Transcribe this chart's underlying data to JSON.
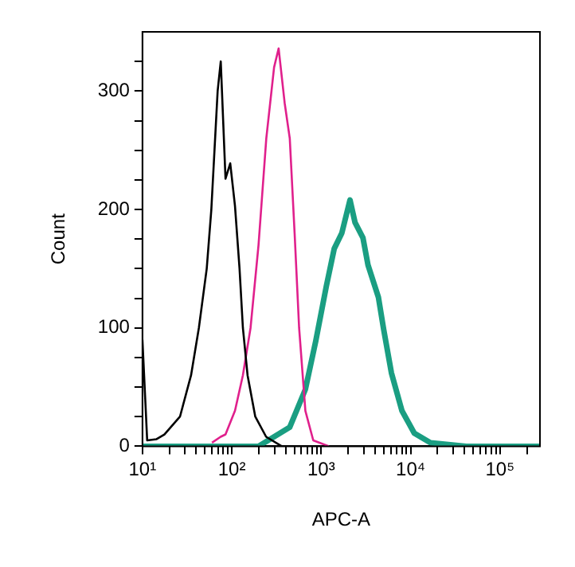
{
  "chart_data": {
    "type": "line",
    "xlabel": "APC-A",
    "ylabel": "Count",
    "log": "x",
    "grid": false,
    "legend": false,
    "marker": "none",
    "line_style": "solid",
    "xlim": [
      10,
      280000
    ],
    "xticks": [
      {
        "value": 10,
        "label": "10¹"
      },
      {
        "value": 20,
        "label": null
      },
      {
        "value": 30,
        "label": null
      },
      {
        "value": 40,
        "label": null
      },
      {
        "value": 50,
        "label": null
      },
      {
        "value": 60,
        "label": null
      },
      {
        "value": 70,
        "label": null
      },
      {
        "value": 80,
        "label": null
      },
      {
        "value": 90,
        "label": null
      },
      {
        "value": 100,
        "label": "10²"
      },
      {
        "value": 200,
        "label": null
      },
      {
        "value": 300,
        "label": null
      },
      {
        "value": 400,
        "label": null
      },
      {
        "value": 500,
        "label": null
      },
      {
        "value": 600,
        "label": null
      },
      {
        "value": 700,
        "label": null
      },
      {
        "value": 800,
        "label": null
      },
      {
        "value": 900,
        "label": null
      },
      {
        "value": 1000,
        "label": "10³"
      },
      {
        "value": 2000,
        "label": null
      },
      {
        "value": 3000,
        "label": null
      },
      {
        "value": 4000,
        "label": null
      },
      {
        "value": 5000,
        "label": null
      },
      {
        "value": 6000,
        "label": null
      },
      {
        "value": 7000,
        "label": null
      },
      {
        "value": 8000,
        "label": null
      },
      {
        "value": 9000,
        "label": null
      },
      {
        "value": 10000,
        "label": "10⁴"
      },
      {
        "value": 20000,
        "label": null
      },
      {
        "value": 30000,
        "label": null
      },
      {
        "value": 40000,
        "label": null
      },
      {
        "value": 50000,
        "label": null
      },
      {
        "value": 60000,
        "label": null
      },
      {
        "value": 70000,
        "label": null
      },
      {
        "value": 80000,
        "label": null
      },
      {
        "value": 90000,
        "label": null
      },
      {
        "value": 100000,
        "label": "10⁵"
      },
      {
        "value": 200000,
        "label": null
      }
    ],
    "ylim": [
      0,
      350
    ],
    "yticks": [
      0,
      {
        "value": 25,
        "label": null
      },
      {
        "value": 50,
        "label": null
      },
      {
        "value": 75,
        "label": null
      },
      100,
      {
        "value": 125,
        "label": null
      },
      {
        "value": 150,
        "label": null
      },
      {
        "value": 175,
        "label": null
      },
      200,
      {
        "value": 225,
        "label": null
      },
      {
        "value": 250,
        "label": null
      },
      {
        "value": 275,
        "label": null
      },
      300,
      {
        "value": 325,
        "label": null
      }
    ],
    "series": [
      {
        "color": "#000000",
        "x": [
          10,
          11.3,
          14.4,
          17.6,
          26.3,
          35,
          42.8,
          52.4,
          59,
          64,
          69.4,
          75.2,
          85,
          96,
          108.5,
          122,
          133,
          150,
          183,
          242,
          362,
          665
        ],
        "values": [
          90,
          5,
          6,
          10,
          25,
          60,
          100,
          150,
          200,
          250,
          300,
          325,
          226,
          239,
          203,
          150,
          100,
          60,
          25,
          8,
          0,
          0
        ]
      },
      {
        "color": "#e0208c",
        "x": [
          60,
          75,
          85,
          108.5,
          133,
          162,
          199,
          243,
          297,
          334,
          390,
          445,
          504,
          566,
          665,
          815,
          1220
        ],
        "values": [
          3,
          8,
          10,
          30,
          60,
          100,
          170,
          260,
          320,
          336,
          290,
          260,
          180,
          100,
          30,
          5,
          0
        ]
      },
      {
        "color": "#1a9e82",
        "x": [
          10,
          198.6,
          444,
          665,
          870,
          1140,
          1400,
          1700,
          2100,
          2390,
          2930,
          3340,
          4360,
          4990,
          6100,
          8000,
          11000,
          16700,
          42000,
          280000
        ],
        "values": [
          0,
          0,
          16,
          48,
          89,
          135,
          167,
          180,
          208,
          189,
          176,
          153,
          126,
          99,
          62,
          30,
          11,
          3,
          0,
          0
        ]
      }
    ]
  }
}
